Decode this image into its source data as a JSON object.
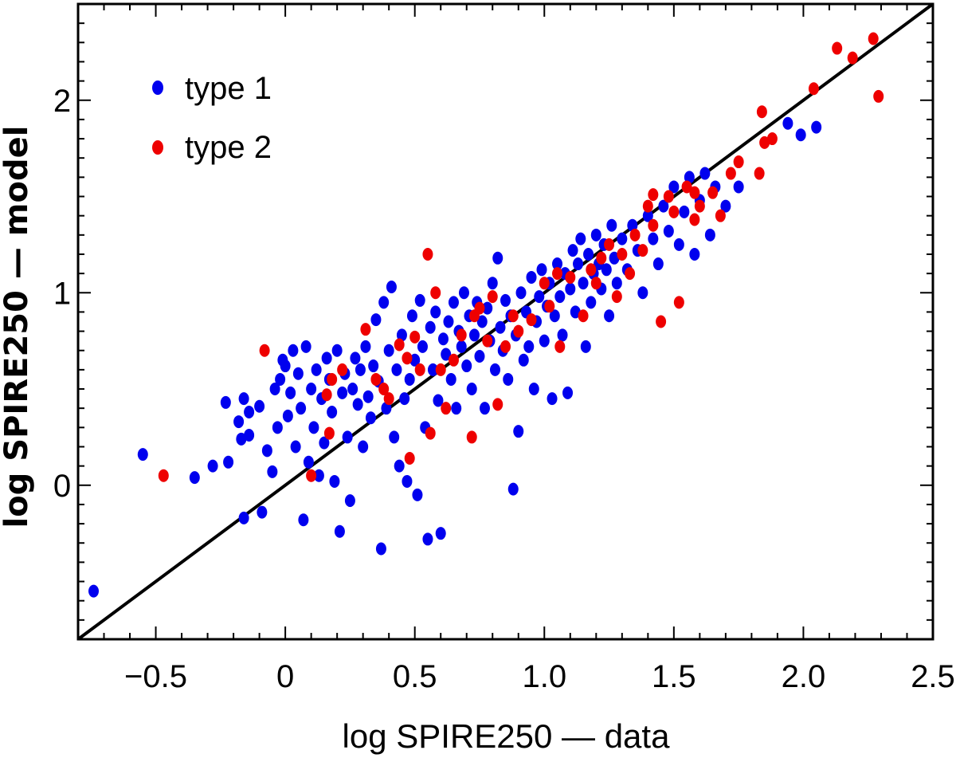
{
  "chart_data": {
    "type": "scatter",
    "xlabel": "log SPIRE250 — data",
    "ylabel": "log SPIRE250 — model",
    "xlim": [
      -0.8,
      2.5
    ],
    "ylim": [
      -0.8,
      2.5
    ],
    "xticks": [
      -0.5,
      0,
      0.5,
      1.0,
      1.5,
      2.0,
      2.5
    ],
    "xtick_labels": [
      "−0.5",
      "0",
      "0.5",
      "1.0",
      "1.5",
      "2.0",
      "2.5"
    ],
    "yticks": [
      0,
      1,
      2
    ],
    "ytick_labels": [
      "0",
      "1",
      "2"
    ],
    "reference_line": {
      "name": "1:1 line",
      "from": [
        -0.8,
        -0.8
      ],
      "to": [
        2.5,
        2.5
      ],
      "color": "#000000"
    },
    "legend": {
      "placement": "top-left"
    },
    "series": [
      {
        "name": "type 1",
        "color": "#0000ee",
        "points": [
          [
            -0.74,
            -0.55
          ],
          [
            -0.55,
            0.16
          ],
          [
            -0.35,
            0.04
          ],
          [
            -0.28,
            0.1
          ],
          [
            -0.23,
            0.43
          ],
          [
            -0.22,
            0.12
          ],
          [
            -0.18,
            0.33
          ],
          [
            -0.16,
            0.45
          ],
          [
            -0.17,
            0.24
          ],
          [
            -0.16,
            -0.17
          ],
          [
            -0.14,
            0.38
          ],
          [
            -0.14,
            0.26
          ],
          [
            -0.1,
            0.41
          ],
          [
            -0.09,
            -0.14
          ],
          [
            -0.07,
            0.18
          ],
          [
            -0.05,
            0.07
          ],
          [
            -0.04,
            0.5
          ],
          [
            -0.03,
            0.3
          ],
          [
            -0.02,
            0.55
          ],
          [
            -0.01,
            0.65
          ],
          [
            0.0,
            0.62
          ],
          [
            0.01,
            0.36
          ],
          [
            0.02,
            0.48
          ],
          [
            0.03,
            0.7
          ],
          [
            0.04,
            0.2
          ],
          [
            0.05,
            0.58
          ],
          [
            0.06,
            0.4
          ],
          [
            0.07,
            -0.18
          ],
          [
            0.08,
            0.72
          ],
          [
            0.09,
            0.12
          ],
          [
            0.1,
            0.5
          ],
          [
            0.11,
            0.3
          ],
          [
            0.12,
            0.6
          ],
          [
            0.13,
            0.05
          ],
          [
            0.14,
            0.45
          ],
          [
            0.15,
            0.22
          ],
          [
            0.16,
            0.66
          ],
          [
            0.17,
            0.55
          ],
          [
            0.18,
            0.38
          ],
          [
            0.19,
            0.02
          ],
          [
            0.2,
            0.7
          ],
          [
            0.21,
            -0.24
          ],
          [
            0.22,
            0.48
          ],
          [
            0.23,
            0.58
          ],
          [
            0.24,
            0.25
          ],
          [
            0.25,
            -0.08
          ],
          [
            0.26,
            0.5
          ],
          [
            0.27,
            0.66
          ],
          [
            0.28,
            0.42
          ],
          [
            0.29,
            0.6
          ],
          [
            0.3,
            0.2
          ],
          [
            0.31,
            0.72
          ],
          [
            0.32,
            0.46
          ],
          [
            0.33,
            0.35
          ],
          [
            0.34,
            0.62
          ],
          [
            0.35,
            0.86
          ],
          [
            0.36,
            0.54
          ],
          [
            0.37,
            -0.33
          ],
          [
            0.38,
            0.95
          ],
          [
            0.39,
            0.4
          ],
          [
            0.4,
            0.7
          ],
          [
            0.41,
            1.03
          ],
          [
            0.42,
            0.25
          ],
          [
            0.43,
            0.6
          ],
          [
            0.44,
            0.1
          ],
          [
            0.45,
            0.78
          ],
          [
            0.46,
            0.45
          ],
          [
            0.47,
            0.02
          ],
          [
            0.48,
            0.55
          ],
          [
            0.49,
            0.88
          ],
          [
            0.5,
            0.65
          ],
          [
            0.51,
            -0.05
          ],
          [
            0.52,
            0.96
          ],
          [
            0.53,
            0.72
          ],
          [
            0.54,
            0.3
          ],
          [
            0.55,
            -0.28
          ],
          [
            0.56,
            0.82
          ],
          [
            0.57,
            0.6
          ],
          [
            0.58,
            0.9
          ],
          [
            0.59,
            0.44
          ],
          [
            0.6,
            -0.25
          ],
          [
            0.61,
            0.76
          ],
          [
            0.62,
            0.68
          ],
          [
            0.63,
            0.85
          ],
          [
            0.64,
            0.55
          ],
          [
            0.65,
            0.95
          ],
          [
            0.66,
            0.4
          ],
          [
            0.67,
            0.8
          ],
          [
            0.68,
            0.72
          ],
          [
            0.69,
            1.0
          ],
          [
            0.7,
            0.62
          ],
          [
            0.71,
            0.88
          ],
          [
            0.72,
            0.5
          ],
          [
            0.73,
            0.78
          ],
          [
            0.74,
            0.95
          ],
          [
            0.75,
            0.67
          ],
          [
            0.76,
            0.85
          ],
          [
            0.77,
            0.4
          ],
          [
            0.78,
            0.92
          ],
          [
            0.79,
            0.75
          ],
          [
            0.8,
            1.05
          ],
          [
            0.81,
            0.6
          ],
          [
            0.82,
            1.18
          ],
          [
            0.83,
            0.82
          ],
          [
            0.84,
            0.7
          ],
          [
            0.85,
            0.96
          ],
          [
            0.86,
            0.55
          ],
          [
            0.87,
            0.88
          ],
          [
            0.88,
            -0.02
          ],
          [
            0.89,
            0.78
          ],
          [
            0.9,
            0.28
          ],
          [
            0.91,
            1.0
          ],
          [
            0.92,
            0.65
          ],
          [
            0.93,
            0.9
          ],
          [
            0.94,
            0.72
          ],
          [
            0.95,
            1.08
          ],
          [
            0.96,
            0.5
          ],
          [
            0.97,
            0.85
          ],
          [
            0.98,
            0.98
          ],
          [
            0.99,
            1.12
          ],
          [
            1.0,
            0.75
          ],
          [
            1.01,
            0.93
          ],
          [
            1.02,
            1.05
          ],
          [
            1.03,
            0.45
          ],
          [
            1.04,
            0.88
          ],
          [
            1.05,
            1.15
          ],
          [
            1.06,
            0.98
          ],
          [
            1.07,
            0.78
          ],
          [
            1.08,
            1.1
          ],
          [
            1.09,
            0.48
          ],
          [
            1.1,
            1.02
          ],
          [
            1.11,
            1.22
          ],
          [
            1.12,
            0.9
          ],
          [
            1.13,
            1.15
          ],
          [
            1.14,
            1.28
          ],
          [
            1.15,
            1.05
          ],
          [
            1.16,
            0.72
          ],
          [
            1.17,
            1.2
          ],
          [
            1.18,
            0.95
          ],
          [
            1.19,
            1.1
          ],
          [
            1.2,
            1.3
          ],
          [
            1.21,
            1.15
          ],
          [
            1.22,
            1.02
          ],
          [
            1.23,
            1.25
          ],
          [
            1.24,
            1.12
          ],
          [
            1.25,
            0.88
          ],
          [
            1.26,
            1.35
          ],
          [
            1.27,
            1.18
          ],
          [
            1.28,
            1.05
          ],
          [
            1.3,
            1.28
          ],
          [
            1.32,
            1.12
          ],
          [
            1.34,
            1.35
          ],
          [
            1.36,
            1.22
          ],
          [
            1.38,
            1.0
          ],
          [
            1.4,
            1.4
          ],
          [
            1.42,
            1.28
          ],
          [
            1.44,
            1.15
          ],
          [
            1.46,
            1.45
          ],
          [
            1.48,
            1.32
          ],
          [
            1.5,
            1.55
          ],
          [
            1.52,
            1.25
          ],
          [
            1.54,
            1.42
          ],
          [
            1.56,
            1.6
          ],
          [
            1.58,
            1.2
          ],
          [
            1.6,
            1.48
          ],
          [
            1.62,
            1.62
          ],
          [
            1.64,
            1.3
          ],
          [
            1.66,
            1.55
          ],
          [
            1.7,
            1.45
          ],
          [
            1.75,
            1.55
          ],
          [
            1.94,
            1.88
          ],
          [
            1.99,
            1.82
          ],
          [
            2.05,
            1.86
          ]
        ]
      },
      {
        "name": "type 2",
        "color": "#ee0000",
        "points": [
          [
            -0.47,
            0.05
          ],
          [
            -0.08,
            0.7
          ],
          [
            0.1,
            0.05
          ],
          [
            0.16,
            0.47
          ],
          [
            0.18,
            0.55
          ],
          [
            0.17,
            0.27
          ],
          [
            0.22,
            0.6
          ],
          [
            0.31,
            0.81
          ],
          [
            0.35,
            0.55
          ],
          [
            0.38,
            0.5
          ],
          [
            0.4,
            0.45
          ],
          [
            0.44,
            0.73
          ],
          [
            0.47,
            0.66
          ],
          [
            0.48,
            0.14
          ],
          [
            0.5,
            0.77
          ],
          [
            0.52,
            0.6
          ],
          [
            0.55,
            1.2
          ],
          [
            0.56,
            0.27
          ],
          [
            0.58,
            1.0
          ],
          [
            0.6,
            0.6
          ],
          [
            0.62,
            0.4
          ],
          [
            0.65,
            0.65
          ],
          [
            0.68,
            0.78
          ],
          [
            0.72,
            0.25
          ],
          [
            0.73,
            0.88
          ],
          [
            0.75,
            0.92
          ],
          [
            0.78,
            0.75
          ],
          [
            0.8,
            0.98
          ],
          [
            0.82,
            0.42
          ],
          [
            0.85,
            0.72
          ],
          [
            0.88,
            0.88
          ],
          [
            0.9,
            0.8
          ],
          [
            0.95,
            0.86
          ],
          [
            1.0,
            1.05
          ],
          [
            1.02,
            0.93
          ],
          [
            1.05,
            1.1
          ],
          [
            1.06,
            0.72
          ],
          [
            1.1,
            1.08
          ],
          [
            1.15,
            0.88
          ],
          [
            1.18,
            1.12
          ],
          [
            1.2,
            1.05
          ],
          [
            1.22,
            1.18
          ],
          [
            1.25,
            1.25
          ],
          [
            1.28,
            0.98
          ],
          [
            1.3,
            1.2
          ],
          [
            1.33,
            1.1
          ],
          [
            1.35,
            1.3
          ],
          [
            1.38,
            1.22
          ],
          [
            1.4,
            1.45
          ],
          [
            1.42,
            1.35
          ],
          [
            1.45,
            0.85
          ],
          [
            1.48,
            1.5
          ],
          [
            1.5,
            1.42
          ],
          [
            1.52,
            0.95
          ],
          [
            1.55,
            1.55
          ],
          [
            1.58,
            1.38
          ],
          [
            1.6,
            1.45
          ],
          [
            1.65,
            1.52
          ],
          [
            1.68,
            1.4
          ],
          [
            1.72,
            1.62
          ],
          [
            1.75,
            1.68
          ],
          [
            1.83,
            1.62
          ],
          [
            1.85,
            1.78
          ],
          [
            1.88,
            1.8
          ],
          [
            2.04,
            2.06
          ],
          [
            2.13,
            2.27
          ],
          [
            2.19,
            2.22
          ],
          [
            2.27,
            2.32
          ],
          [
            2.29,
            2.02
          ],
          [
            1.84,
            1.94
          ],
          [
            1.58,
            1.52
          ],
          [
            1.42,
            1.51
          ]
        ]
      }
    ]
  }
}
